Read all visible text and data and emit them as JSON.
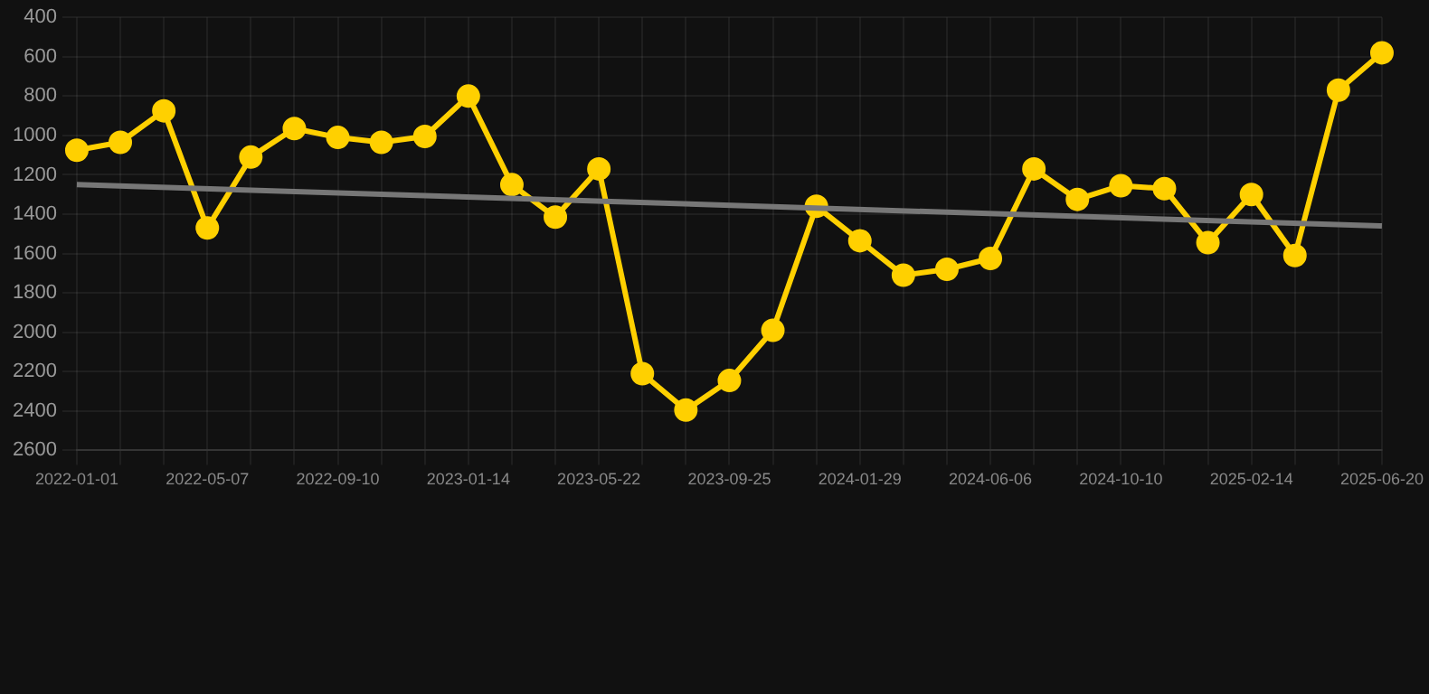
{
  "chart_data": {
    "type": "line",
    "categories": [
      "2022-01-01",
      null,
      null,
      "2022-05-07",
      null,
      null,
      "2022-09-10",
      null,
      null,
      "2023-01-14",
      null,
      null,
      "2023-05-22",
      null,
      null,
      "2023-09-25",
      null,
      null,
      "2024-01-29",
      null,
      null,
      "2024-06-06",
      null,
      null,
      "2024-10-10",
      null,
      null,
      "2025-02-14",
      null,
      null,
      "2025-06-20"
    ],
    "series": [
      {
        "color": "#ffd000",
        "marker": "circle",
        "values": [
          1075,
          1035,
          875,
          1470,
          1110,
          965,
          1010,
          1035,
          1005,
          800,
          1250,
          1415,
          1170,
          2210,
          2395,
          2245,
          1990,
          1360,
          1535,
          1710,
          1680,
          1625,
          1170,
          1325,
          1255,
          1270,
          1545,
          1300,
          1610,
          770,
          580
        ]
      },
      {
        "type": "line",
        "color": "#777777",
        "marker": "none",
        "values": [
          1250,
          null,
          null,
          null,
          null,
          null,
          null,
          null,
          null,
          null,
          null,
          null,
          null,
          null,
          null,
          null,
          null,
          null,
          null,
          null,
          null,
          null,
          null,
          null,
          null,
          null,
          null,
          null,
          null,
          null,
          1460
        ]
      }
    ],
    "ylim": [
      2600,
      400
    ],
    "yticks": [
      400,
      600,
      800,
      1000,
      1200,
      1400,
      1600,
      1800,
      2000,
      2200,
      2400,
      2600
    ],
    "grid": true
  }
}
